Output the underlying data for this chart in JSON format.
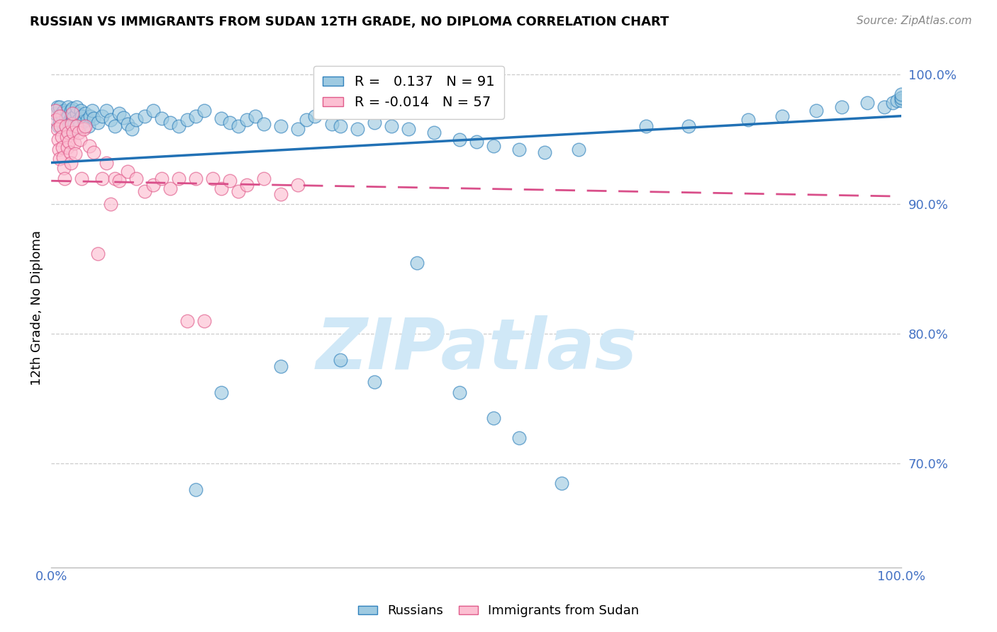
{
  "title": "RUSSIAN VS IMMIGRANTS FROM SUDAN 12TH GRADE, NO DIPLOMA CORRELATION CHART",
  "source": "Source: ZipAtlas.com",
  "ylabel": "12th Grade, No Diploma",
  "blue_color": "#9ecae1",
  "pink_color": "#fcbfd2",
  "blue_edge_color": "#3182bd",
  "pink_edge_color": "#e05a8a",
  "blue_line_color": "#2171b5",
  "pink_line_color": "#d94f8a",
  "watermark_color": "#d0e8f7",
  "grid_color": "#cccccc",
  "axis_color": "#4472c4",
  "title_color": "#000000",
  "source_color": "#888888",
  "xlim": [
    0.0,
    1.0
  ],
  "ylim": [
    0.62,
    1.02
  ],
  "ytick_positions": [
    0.7,
    0.8,
    0.9,
    1.0
  ],
  "ytick_labels": [
    "70.0%",
    "80.0%",
    "90.0%",
    "100.0%"
  ],
  "russian_trendline": [
    0.932,
    0.968
  ],
  "sudan_trendline": [
    0.918,
    0.906
  ],
  "rus_x": [
    0.005,
    0.007,
    0.008,
    0.01,
    0.01,
    0.012,
    0.013,
    0.015,
    0.015,
    0.016,
    0.017,
    0.018,
    0.019,
    0.02,
    0.02,
    0.021,
    0.022,
    0.023,
    0.024,
    0.025,
    0.026,
    0.027,
    0.028,
    0.03,
    0.03,
    0.032,
    0.033,
    0.035,
    0.036,
    0.038,
    0.04,
    0.042,
    0.044,
    0.046,
    0.048,
    0.05,
    0.055,
    0.06,
    0.065,
    0.07,
    0.075,
    0.08,
    0.085,
    0.09,
    0.095,
    0.1,
    0.11,
    0.12,
    0.13,
    0.14,
    0.15,
    0.16,
    0.17,
    0.18,
    0.2,
    0.21,
    0.22,
    0.23,
    0.24,
    0.25,
    0.27,
    0.29,
    0.3,
    0.31,
    0.33,
    0.34,
    0.36,
    0.38,
    0.4,
    0.42,
    0.45,
    0.48,
    0.5,
    0.52,
    0.55,
    0.58,
    0.62,
    0.7,
    0.75,
    0.82,
    0.86,
    0.9,
    0.93,
    0.96,
    0.98,
    0.99,
    0.995,
    1.0,
    1.0,
    1.0,
    1.0
  ],
  "rus_y": [
    0.97,
    0.975,
    0.96,
    0.965,
    0.975,
    0.97,
    0.968,
    0.972,
    0.958,
    0.962,
    0.966,
    0.971,
    0.963,
    0.968,
    0.975,
    0.96,
    0.965,
    0.972,
    0.969,
    0.974,
    0.967,
    0.963,
    0.958,
    0.97,
    0.975,
    0.965,
    0.96,
    0.972,
    0.968,
    0.964,
    0.97,
    0.965,
    0.96,
    0.968,
    0.972,
    0.966,
    0.963,
    0.968,
    0.972,
    0.965,
    0.96,
    0.97,
    0.967,
    0.962,
    0.958,
    0.965,
    0.968,
    0.972,
    0.966,
    0.963,
    0.96,
    0.965,
    0.968,
    0.972,
    0.966,
    0.963,
    0.96,
    0.965,
    0.968,
    0.962,
    0.96,
    0.958,
    0.965,
    0.968,
    0.962,
    0.96,
    0.958,
    0.963,
    0.96,
    0.958,
    0.955,
    0.95,
    0.948,
    0.945,
    0.942,
    0.94,
    0.942,
    0.96,
    0.96,
    0.965,
    0.968,
    0.972,
    0.975,
    0.978,
    0.975,
    0.978,
    0.98,
    0.982,
    0.98,
    0.982,
    0.985
  ],
  "rus_y_outliers_x": [
    0.17,
    0.2,
    0.27,
    0.34,
    0.38,
    0.43,
    0.48,
    0.52,
    0.55,
    0.6
  ],
  "rus_y_outliers_y": [
    0.68,
    0.755,
    0.775,
    0.78,
    0.763,
    0.855,
    0.755,
    0.735,
    0.72,
    0.685
  ],
  "sud_x": [
    0.005,
    0.006,
    0.007,
    0.008,
    0.009,
    0.01,
    0.01,
    0.011,
    0.012,
    0.013,
    0.014,
    0.015,
    0.016,
    0.017,
    0.018,
    0.019,
    0.02,
    0.021,
    0.022,
    0.023,
    0.024,
    0.025,
    0.026,
    0.027,
    0.028,
    0.03,
    0.032,
    0.034,
    0.036,
    0.038,
    0.04,
    0.045,
    0.05,
    0.055,
    0.06,
    0.065,
    0.07,
    0.075,
    0.08,
    0.09,
    0.1,
    0.11,
    0.12,
    0.13,
    0.14,
    0.15,
    0.16,
    0.17,
    0.18,
    0.19,
    0.2,
    0.21,
    0.22,
    0.23,
    0.25,
    0.27,
    0.29
  ],
  "sud_y": [
    0.972,
    0.965,
    0.958,
    0.95,
    0.942,
    0.935,
    0.968,
    0.96,
    0.952,
    0.944,
    0.936,
    0.928,
    0.92,
    0.96,
    0.952,
    0.944,
    0.955,
    0.948,
    0.94,
    0.932,
    0.962,
    0.97,
    0.955,
    0.947,
    0.939,
    0.96,
    0.955,
    0.95,
    0.92,
    0.958,
    0.96,
    0.945,
    0.94,
    0.862,
    0.92,
    0.932,
    0.9,
    0.92,
    0.918,
    0.925,
    0.92,
    0.91,
    0.915,
    0.92,
    0.912,
    0.92,
    0.81,
    0.92,
    0.81,
    0.92,
    0.912,
    0.918,
    0.91,
    0.915,
    0.92,
    0.908,
    0.915
  ]
}
